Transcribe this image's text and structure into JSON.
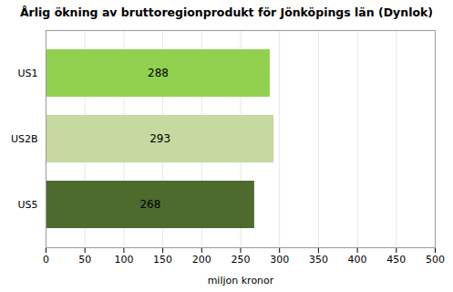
{
  "chart_data": {
    "type": "bar",
    "orientation": "horizontal",
    "title": "Årlig ökning av bruttoregionprodukt för Jönköpings län (Dynlok)",
    "categories": [
      "US1",
      "US2B",
      "US5"
    ],
    "values": [
      288,
      293,
      268
    ],
    "colors": [
      "#92D050",
      "#C6D9A0",
      "#4E6B2E"
    ],
    "xlabel": "miljon kronor",
    "xlim": [
      0,
      500
    ],
    "xticks": [
      0,
      50,
      100,
      150,
      200,
      250,
      300,
      350,
      400,
      450,
      500
    ],
    "grid": true,
    "data_labels": true
  }
}
